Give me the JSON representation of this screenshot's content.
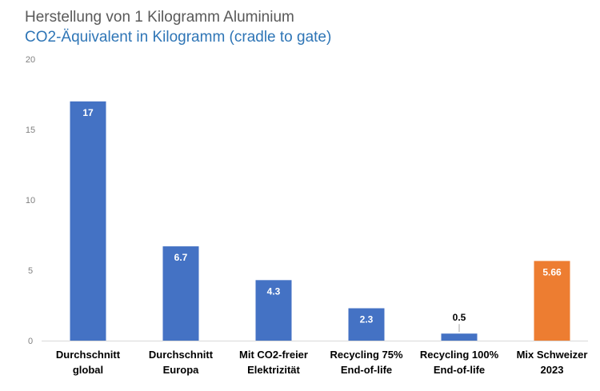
{
  "chart_data": {
    "type": "bar",
    "title": "Herstellung von  1 Kilogramm Aluminium",
    "subtitle": "CO2-Äquivalent in Kilogramm (cradle to gate)",
    "xlabel": "",
    "ylabel": "",
    "ylim": [
      0,
      20
    ],
    "yticks": [
      "0",
      "5",
      "10",
      "15",
      "20"
    ],
    "grid": false,
    "legend": "none",
    "categories": [
      [
        "Durchschnitt",
        "global"
      ],
      [
        "Durchschnitt",
        "Europa"
      ],
      [
        "Mit CO2-freier",
        "Elektrizität"
      ],
      [
        "Recycling 75%",
        "End-of-life"
      ],
      [
        "Recycling 100%",
        "End-of-life"
      ],
      [
        "Mix Schweizer",
        "2023"
      ]
    ],
    "values": [
      17,
      6.7,
      4.3,
      2.3,
      0.5,
      5.66
    ],
    "value_labels": [
      "17",
      "6.7",
      "4.3",
      "2.3",
      "0.5",
      "5.66"
    ],
    "colors": [
      "#4472c4",
      "#4472c4",
      "#4472c4",
      "#4472c4",
      "#4472c4",
      "#ed7d31"
    ],
    "label_colors": [
      "#ffffff",
      "#ffffff",
      "#ffffff",
      "#ffffff",
      "#000000",
      "#ffffff"
    ]
  }
}
